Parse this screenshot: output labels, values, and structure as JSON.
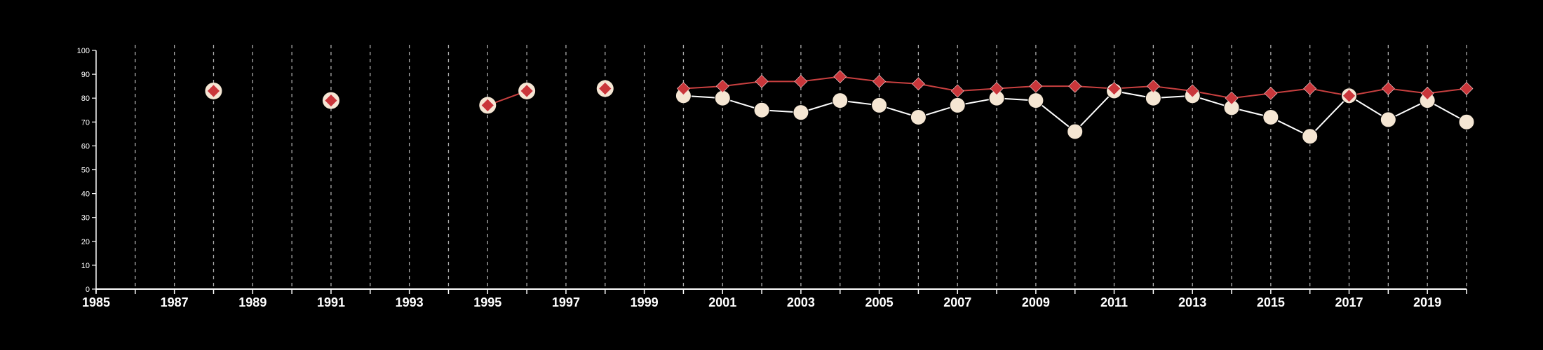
{
  "chart_data": {
    "type": "line",
    "title": "",
    "xlabel": "",
    "ylabel": "",
    "xlim": [
      1985,
      2020
    ],
    "ylim": [
      0,
      100
    ],
    "grid": {
      "x": "dashed vertical lines at every year",
      "y": false
    },
    "x_tick_labels": [
      "1985",
      "1987",
      "1989",
      "1991",
      "1993",
      "1995",
      "1997",
      "1999",
      "2001",
      "2003",
      "2005",
      "2007",
      "2009",
      "2011",
      "2013",
      "2015",
      "2017",
      "2019"
    ],
    "y_tick_labels": [
      "0",
      "10",
      "20",
      "30",
      "40",
      "50",
      "60",
      "70",
      "80",
      "90",
      "100"
    ],
    "series": [
      {
        "color": "#ff0000",
        "marker": "diamond",
        "x": [
          1988,
          1991,
          1995,
          1996,
          1998,
          2000,
          2001,
          2002,
          2003,
          2004,
          2005,
          2006,
          2007,
          2008,
          2009,
          2010,
          2011,
          2012,
          2013,
          2014,
          2015,
          2016,
          2017,
          2018,
          2019,
          2020
        ],
        "y": [
          83,
          79,
          77,
          83,
          84,
          84,
          85,
          87,
          87,
          89,
          87,
          86,
          83,
          84,
          85,
          85,
          84,
          85,
          83,
          80,
          82,
          84,
          81,
          84,
          82,
          84
        ]
      },
      {
        "color": "#f5e6d3",
        "marker": "circle",
        "x": [
          2000,
          2001,
          2002,
          2003,
          2004,
          2005,
          2006,
          2007,
          2008,
          2009,
          2010,
          2011,
          2012,
          2013,
          2014,
          2015,
          2016,
          2017,
          2018,
          2019,
          2020
        ],
        "y": [
          81,
          80,
          75,
          74,
          79,
          77,
          72,
          77,
          80,
          79,
          66,
          83,
          80,
          81,
          76,
          72,
          64,
          81,
          71,
          79,
          70
        ]
      }
    ],
    "colors": {
      "background": "#000000",
      "axis": "#ffffff",
      "grid": "#aaaaaa",
      "red_fill": "#c9363a",
      "red_line": "#c94040",
      "cream_fill": "#f5e6d3",
      "white_line": "#ffffff"
    }
  }
}
